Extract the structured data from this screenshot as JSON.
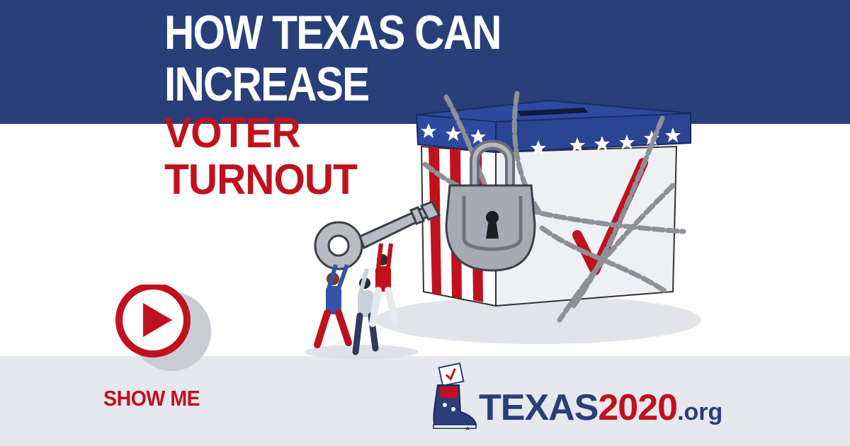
{
  "colors": {
    "navy": "#283f79",
    "red": "#c0111f",
    "light_gray": "#e6e8ee",
    "white": "#ffffff"
  },
  "headline": {
    "line1": "HOW TEXAS CAN",
    "line2": "INCREASE",
    "line3": "VOTER",
    "line4": "TURNOUT"
  },
  "cta": {
    "icon": "play-icon",
    "label": "SHOW ME"
  },
  "logo": {
    "icon": "cowboy-boot-ballot-icon",
    "name": "TEXAS",
    "year": "2020",
    "tld": ".org"
  },
  "illustration": {
    "icon": "chained-ballot-box-with-key-illustration"
  }
}
